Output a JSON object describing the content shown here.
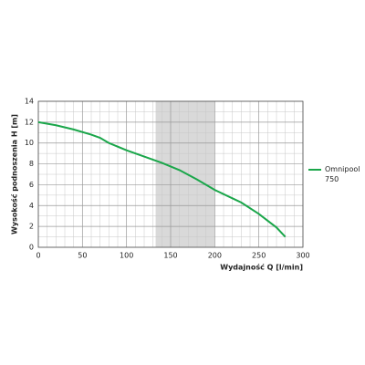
{
  "chart_data": {
    "type": "line",
    "x_label": "Wydajność Q [l/min]",
    "y_label": "Wysokość podnoszenia H [m]",
    "xlim": [
      0,
      300
    ],
    "xticks": [
      0,
      50,
      100,
      150,
      200,
      250,
      300
    ],
    "ylim": [
      0,
      14
    ],
    "yticks": [
      0,
      2,
      4,
      6,
      8,
      10,
      12,
      14
    ],
    "grid": true,
    "minor_grid": {
      "x": 5,
      "y": 2
    },
    "highlight_range": [
      133,
      200
    ],
    "highlight_color": "#d9d9d9",
    "legend": "right",
    "x": [
      0,
      20,
      40,
      60,
      70,
      80,
      100,
      120,
      140,
      160,
      180,
      200,
      220,
      230,
      250,
      270,
      280
    ],
    "series": [
      {
        "name": "Omnipool 750",
        "color": "#1aa64a",
        "values": [
          12,
          11.7,
          11.3,
          10.8,
          10.5,
          10,
          9.3,
          8.7,
          8.1,
          7.4,
          6.5,
          5.5,
          4.7,
          4.3,
          3.2,
          1.9,
          1.0
        ]
      }
    ]
  }
}
